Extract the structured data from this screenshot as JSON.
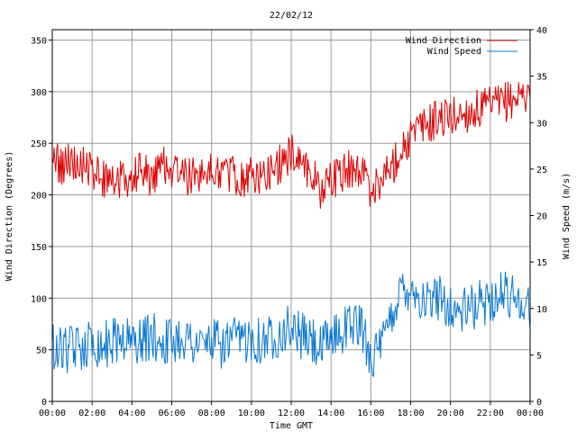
{
  "chart_data": {
    "type": "line",
    "title": "22/02/12",
    "xlabel": "Time GMT",
    "ylabel_left": "Wind Direction (Degrees)",
    "ylabel_right": "Wind Speed (m/s)",
    "x_ticks": [
      "00:00",
      "02:00",
      "04:00",
      "06:00",
      "08:00",
      "10:00",
      "12:00",
      "14:00",
      "16:00",
      "18:00",
      "20:00",
      "22:00",
      "00:00"
    ],
    "x_range_hours": [
      0,
      24
    ],
    "y_left_range": [
      0,
      360
    ],
    "y_left_ticks": [
      0,
      50,
      100,
      150,
      200,
      250,
      300,
      350
    ],
    "y_right_range": [
      0,
      40
    ],
    "y_right_ticks": [
      0,
      5,
      10,
      15,
      20,
      25,
      30,
      35,
      40
    ],
    "grid": true,
    "legend_position": "top-right",
    "series": [
      {
        "name": "Wind Direction",
        "axis": "left",
        "color": "#dd0000",
        "points": [
          [
            0,
            240
          ],
          [
            0.5,
            225
          ],
          [
            1,
            235
          ],
          [
            1.5,
            230
          ],
          [
            2,
            225
          ],
          [
            2.5,
            215
          ],
          [
            3,
            220
          ],
          [
            3.5,
            215
          ],
          [
            4,
            220
          ],
          [
            4.5,
            225
          ],
          [
            5,
            215
          ],
          [
            5.5,
            230
          ],
          [
            6,
            225
          ],
          [
            6.5,
            220
          ],
          [
            7,
            215
          ],
          [
            7.5,
            225
          ],
          [
            8,
            220
          ],
          [
            8.5,
            225
          ],
          [
            9,
            220
          ],
          [
            9.5,
            215
          ],
          [
            10,
            220
          ],
          [
            10.5,
            215
          ],
          [
            11,
            225
          ],
          [
            11.5,
            230
          ],
          [
            12,
            240
          ],
          [
            12.5,
            235
          ],
          [
            13,
            220
          ],
          [
            13.5,
            205
          ],
          [
            14,
            215
          ],
          [
            14.5,
            220
          ],
          [
            15,
            225
          ],
          [
            15.5,
            225
          ],
          [
            16,
            205
          ],
          [
            16.5,
            215
          ],
          [
            17,
            225
          ],
          [
            17.5,
            245
          ],
          [
            18,
            255
          ],
          [
            18.5,
            265
          ],
          [
            19,
            270
          ],
          [
            19.5,
            275
          ],
          [
            20,
            275
          ],
          [
            20.5,
            278
          ],
          [
            21,
            280
          ],
          [
            21.5,
            283
          ],
          [
            22,
            285
          ],
          [
            22.5,
            288
          ],
          [
            23,
            292
          ],
          [
            23.5,
            296
          ],
          [
            24,
            300
          ]
        ]
      },
      {
        "name": "Wind Speed",
        "axis": "right",
        "color": "#0a78d2",
        "points": [
          [
            0,
            6
          ],
          [
            0.5,
            5.5
          ],
          [
            1,
            5.5
          ],
          [
            1.5,
            6
          ],
          [
            2,
            6.5
          ],
          [
            2.5,
            6
          ],
          [
            3,
            6.5
          ],
          [
            3.5,
            7
          ],
          [
            4,
            6.5
          ],
          [
            4.5,
            6.5
          ],
          [
            5,
            7
          ],
          [
            5.5,
            6.5
          ],
          [
            6,
            6.5
          ],
          [
            6.5,
            7
          ],
          [
            7,
            6.5
          ],
          [
            7.5,
            6
          ],
          [
            8,
            6.5
          ],
          [
            8.5,
            6
          ],
          [
            9,
            6.5
          ],
          [
            9.5,
            6.5
          ],
          [
            10,
            7
          ],
          [
            10.5,
            6.5
          ],
          [
            11,
            7
          ],
          [
            11.5,
            7.5
          ],
          [
            12,
            8
          ],
          [
            12.5,
            7
          ],
          [
            13,
            6.5
          ],
          [
            13.5,
            5.5
          ],
          [
            14,
            7
          ],
          [
            14.5,
            7.5
          ],
          [
            15,
            8.5
          ],
          [
            15.5,
            8
          ],
          [
            16,
            5
          ],
          [
            16.5,
            5.5
          ],
          [
            17,
            9
          ],
          [
            17.5,
            12
          ],
          [
            18,
            12.5
          ],
          [
            18.5,
            11
          ],
          [
            19,
            10.5
          ],
          [
            19.5,
            11.5
          ],
          [
            20,
            10
          ],
          [
            20.5,
            9.5
          ],
          [
            21,
            10
          ],
          [
            21.5,
            10.5
          ],
          [
            22,
            11
          ],
          [
            22.5,
            11.5
          ],
          [
            23,
            11.5
          ],
          [
            23.5,
            11
          ],
          [
            24,
            10
          ]
        ]
      }
    ]
  }
}
